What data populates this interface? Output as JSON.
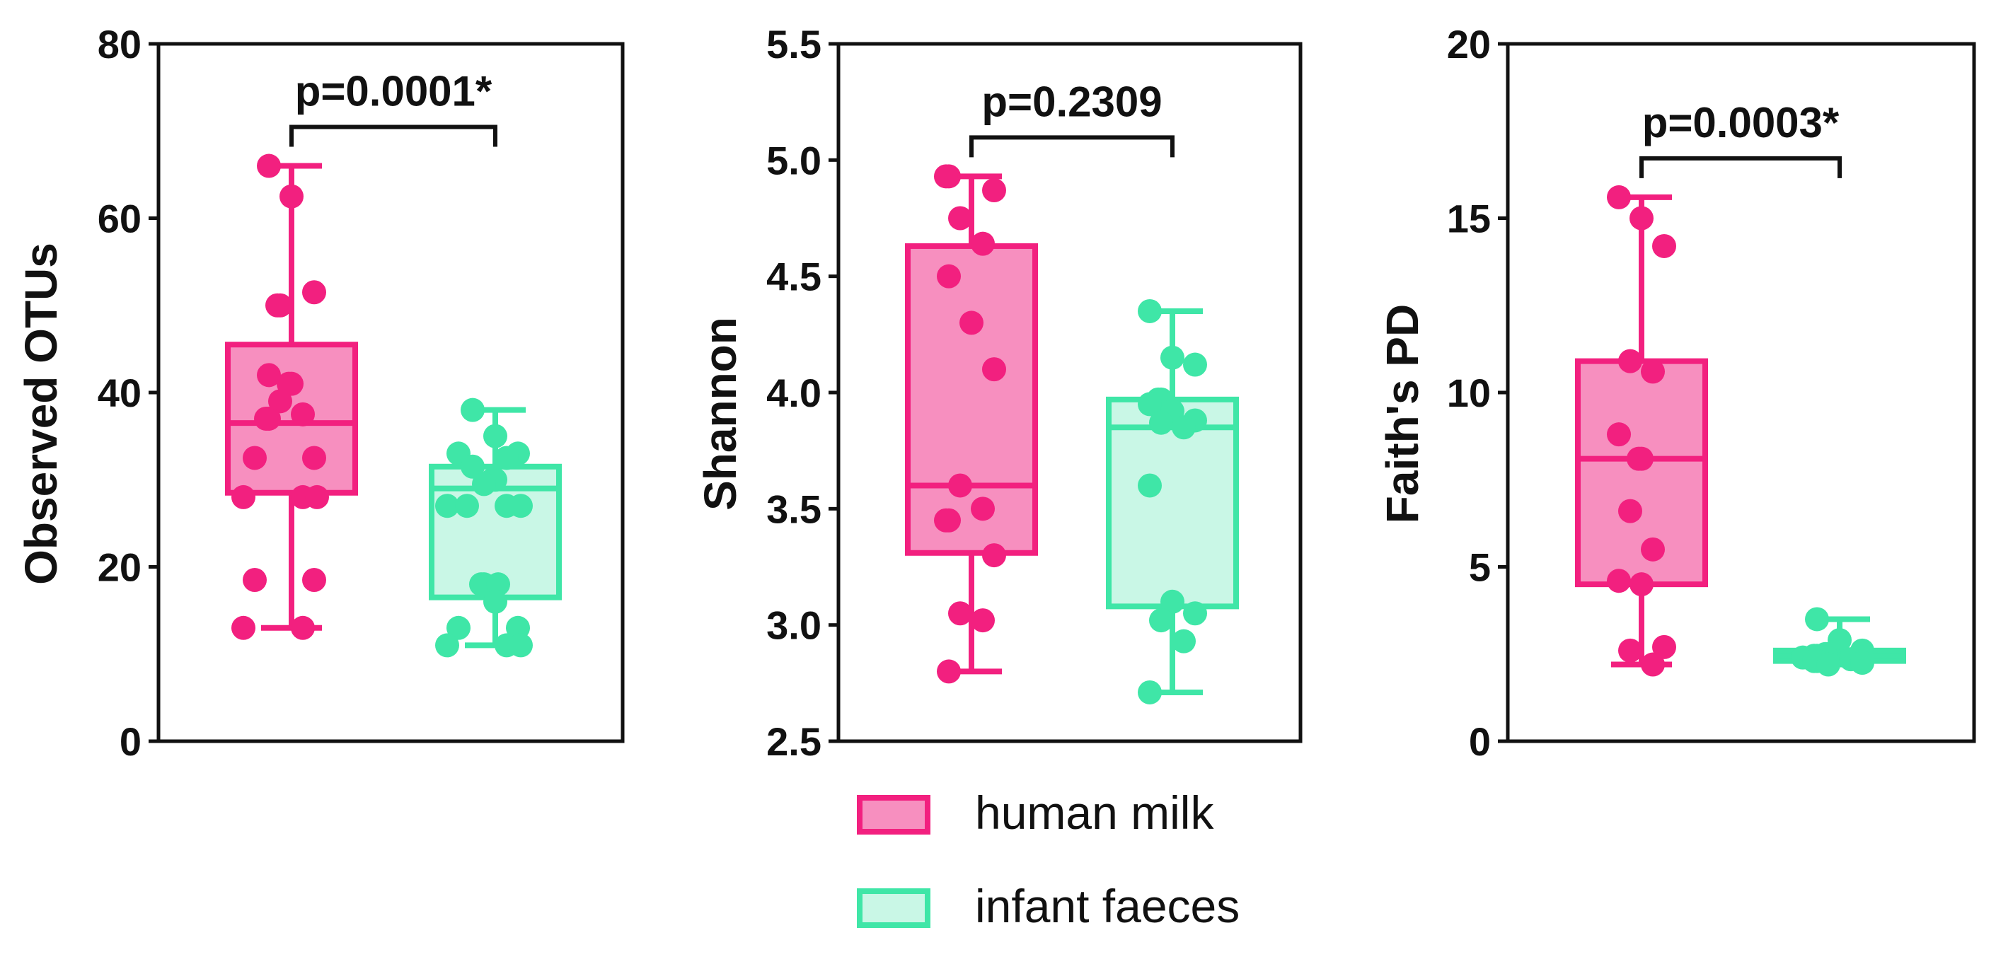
{
  "colors": {
    "human_milk_stroke": "#f2207f",
    "human_milk_fill": "#f78fbf",
    "infant_faeces_stroke": "#3fe6a7",
    "infant_faeces_fill": "#c9f7e6",
    "axis": "#111111"
  },
  "legend": {
    "placement": "bottom-center",
    "items": [
      {
        "key": "human_milk",
        "label": "human milk"
      },
      {
        "key": "infant_faeces",
        "label": "infant faeces"
      }
    ]
  },
  "chart_data": [
    {
      "type": "box",
      "ylabel": "Observed  OTUs",
      "ylim": [
        0,
        80
      ],
      "yticks": [
        0,
        20,
        40,
        60,
        80
      ],
      "ytick_labels": [
        "0",
        "20",
        "40",
        "60",
        "80"
      ],
      "p_value": "p=0.0001*",
      "series": [
        {
          "name": "human milk",
          "key": "human_milk",
          "whisker": [
            13,
            66
          ],
          "q1": 28.5,
          "median": 36.5,
          "q3": 45.5,
          "points": [
            66,
            62.5,
            51.5,
            50,
            50,
            42,
            41,
            41,
            39,
            37.5,
            37,
            37,
            32.5,
            32.5,
            28,
            28,
            28,
            18.5,
            18.5,
            13,
            13
          ]
        },
        {
          "name": "infant faeces",
          "key": "infant_faeces",
          "whisker": [
            11,
            38
          ],
          "q1": 16.5,
          "median": 29,
          "q3": 31.5,
          "points": [
            38,
            35,
            33,
            33,
            32.5,
            31.5,
            30,
            30,
            29.5,
            27,
            27,
            27,
            27,
            18,
            18,
            18,
            16,
            13,
            13,
            11,
            11,
            11
          ]
        }
      ]
    },
    {
      "type": "box",
      "ylabel": "Shannon",
      "ylim": [
        2.5,
        5.5
      ],
      "yticks": [
        2.5,
        3.0,
        3.5,
        4.0,
        4.5,
        5.0,
        5.5
      ],
      "ytick_labels": [
        "2.5",
        "3.0",
        "3.5",
        "4.0",
        "4.5",
        "5.0",
        "5.5"
      ],
      "p_value": "p=0.2309",
      "series": [
        {
          "name": "human milk",
          "key": "human_milk",
          "whisker": [
            2.8,
            4.93
          ],
          "q1": 3.31,
          "median": 3.6,
          "q3": 4.63,
          "points": [
            4.93,
            4.93,
            4.87,
            4.75,
            4.64,
            4.5,
            4.3,
            4.1,
            3.6,
            3.5,
            3.45,
            3.45,
            3.3,
            3.05,
            3.02,
            2.8
          ]
        },
        {
          "name": "infant faeces",
          "key": "infant_faeces",
          "whisker": [
            2.71,
            4.35
          ],
          "q1": 3.08,
          "median": 3.85,
          "q3": 3.97,
          "points": [
            4.35,
            4.15,
            4.12,
            3.97,
            3.97,
            3.95,
            3.92,
            3.88,
            3.87,
            3.85,
            3.6,
            3.1,
            3.05,
            3.02,
            2.93,
            2.71
          ]
        }
      ]
    },
    {
      "type": "box",
      "ylabel": "Faith's PD",
      "ylim": [
        0,
        20
      ],
      "yticks": [
        0,
        5,
        10,
        15,
        20
      ],
      "ytick_labels": [
        "0",
        "5",
        "10",
        "15",
        "20"
      ],
      "p_value": "p=0.0003*",
      "series": [
        {
          "name": "human milk",
          "key": "human_milk",
          "whisker": [
            2.2,
            15.6
          ],
          "q1": 4.5,
          "median": 8.1,
          "q3": 10.9,
          "points": [
            15.6,
            15.0,
            14.2,
            10.9,
            10.6,
            8.8,
            8.1,
            8.1,
            6.6,
            5.5,
            4.6,
            4.5,
            2.7,
            2.6,
            2.2
          ]
        },
        {
          "name": "infant faeces",
          "key": "infant_faeces",
          "whisker": [
            2.2,
            3.5
          ],
          "q1": 2.3,
          "median": 2.45,
          "q3": 2.6,
          "points": [
            3.5,
            2.9,
            2.6,
            2.5,
            2.5,
            2.45,
            2.45,
            2.4,
            2.4,
            2.35,
            2.3,
            2.3,
            2.25,
            2.2
          ]
        }
      ]
    }
  ]
}
